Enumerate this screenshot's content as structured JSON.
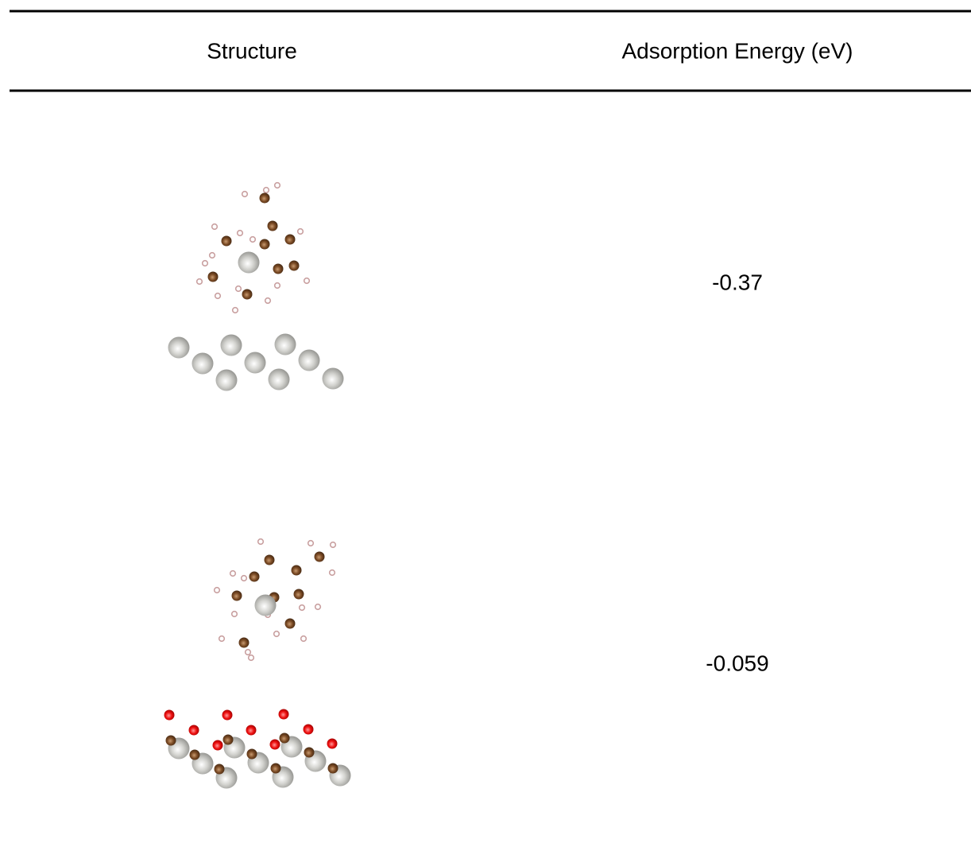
{
  "table": {
    "header": [
      "Structure",
      "Adsorption Energy (eV)"
    ],
    "rows": [
      [
        "-0.37"
      ],
      [
        "-0.059"
      ]
    ]
  }
}
